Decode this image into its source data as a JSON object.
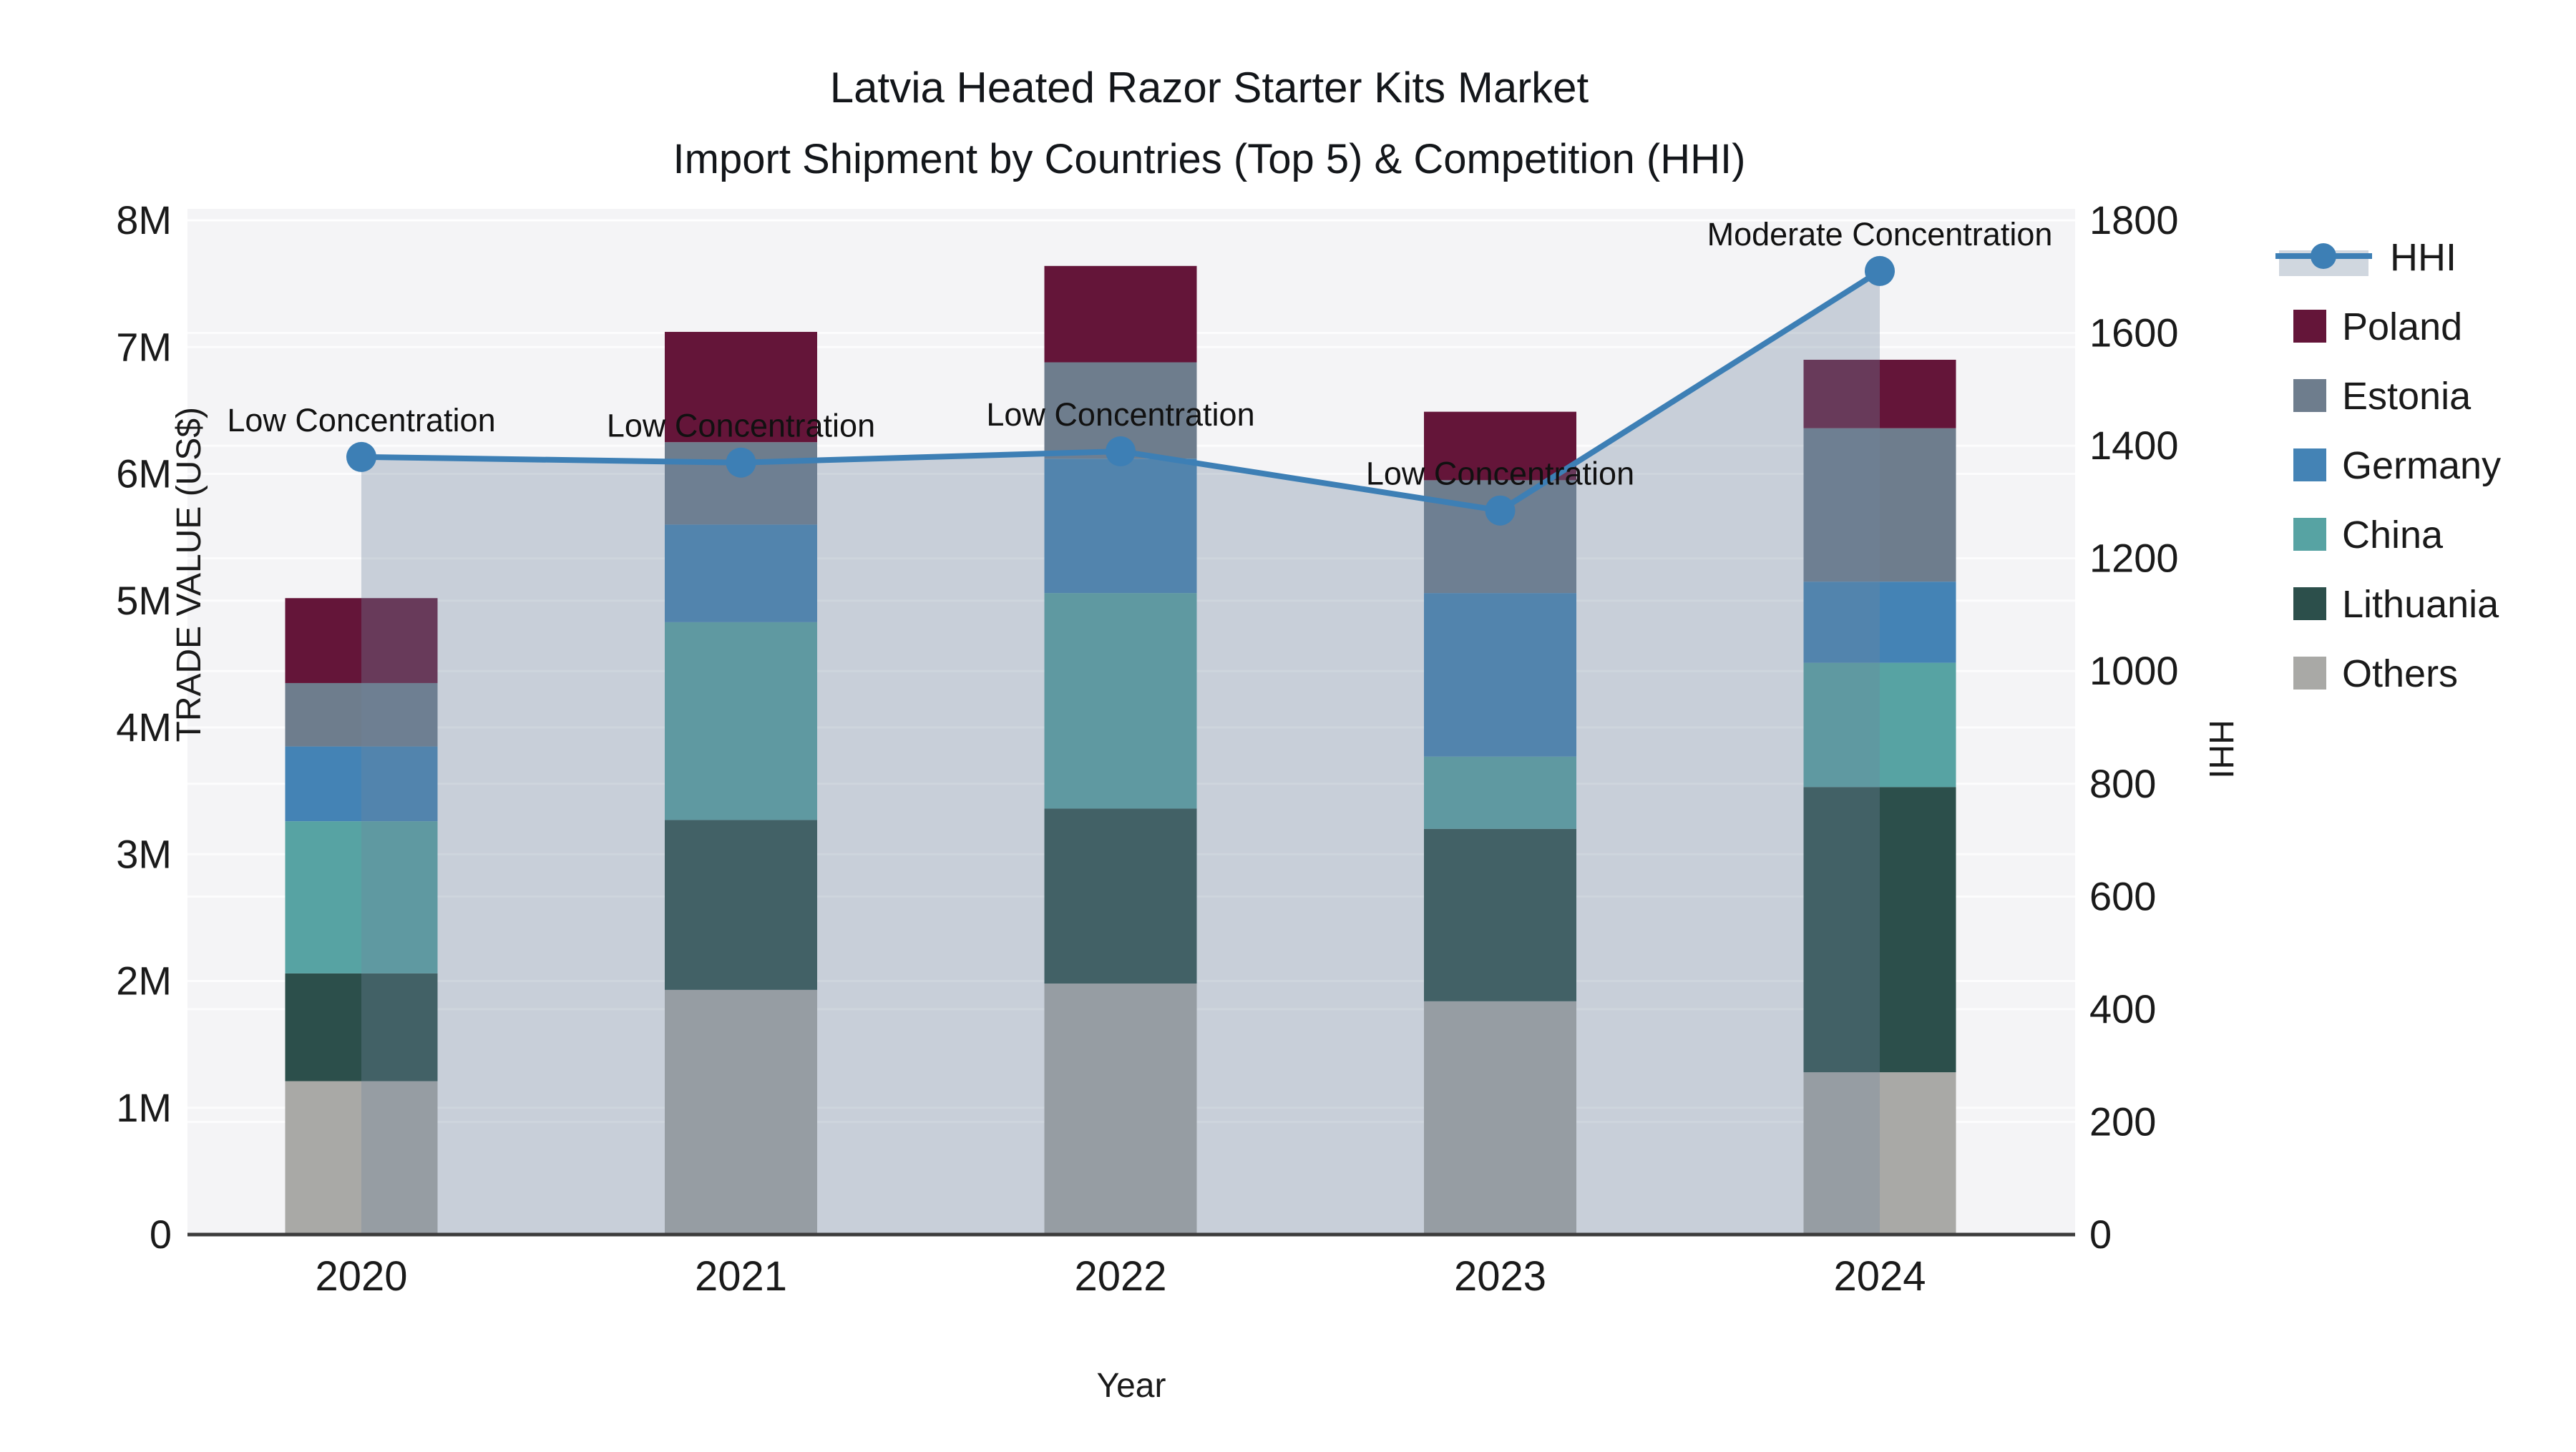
{
  "title": {
    "line1": "Latvia Heated Razor Starter Kits Market",
    "line2": "Import Shipment by Countries (Top 5) & Competition (HHI)"
  },
  "axes": {
    "left": {
      "title": "TRADE VALUE (US$)",
      "tick_labels": [
        "0",
        "1M",
        "2M",
        "3M",
        "4M",
        "5M",
        "6M",
        "7M",
        "8M"
      ],
      "max_musd": 8
    },
    "right": {
      "title": "HHI",
      "tick_labels": [
        "0",
        "200",
        "400",
        "600",
        "800",
        "1000",
        "1200",
        "1400",
        "1600",
        "1800"
      ],
      "max": 1800
    },
    "x": {
      "title": "Year",
      "tick_labels": [
        "2020",
        "2021",
        "2022",
        "2023",
        "2024"
      ]
    }
  },
  "legend": {
    "items": [
      {
        "label": "HHI",
        "swatch": "line-marker-area"
      },
      {
        "label": "Poland",
        "swatch": "square"
      },
      {
        "label": "Estonia",
        "swatch": "square"
      },
      {
        "label": "Germany",
        "swatch": "square"
      },
      {
        "label": "China",
        "swatch": "square"
      },
      {
        "label": "Lithuania",
        "swatch": "square"
      },
      {
        "label": "Others",
        "swatch": "square"
      }
    ]
  },
  "annotations": [
    {
      "year": "2020",
      "text": "Low Concentration"
    },
    {
      "year": "2021",
      "text": "Low Concentration"
    },
    {
      "year": "2022",
      "text": "Low Concentration"
    },
    {
      "year": "2023",
      "text": "Low Concentration"
    },
    {
      "year": "2024",
      "text": "Moderate Concentration"
    }
  ],
  "colors": {
    "plot_bg": "#f4f4f6",
    "gridline": "rgba(255,255,255,0.75)",
    "axis_line": "#3c3c3c",
    "hhi_line": "#3d7fb5",
    "hhi_area_fill": "rgba(113,133,158,0.33)",
    "poland": "#641539",
    "estonia": "#6e7d8d",
    "germany": "#4483b5",
    "china": "#57a3a3",
    "lithuania": "#2c4f4b",
    "others": "#a9a9a6",
    "text": "#1a1a1a"
  },
  "chart_data": {
    "type": "bar+line",
    "title": "Latvia Heated Razor Starter Kits Market — Import Shipment by Countries (Top 5) & Competition (HHI)",
    "categories": [
      "2020",
      "2021",
      "2022",
      "2023",
      "2024"
    ],
    "bar_unit": "million US$",
    "stack_order_bottom_to_top": [
      "Others",
      "Lithuania",
      "China",
      "Germany",
      "Estonia",
      "Poland"
    ],
    "series": [
      {
        "name": "Others",
        "color": "#a9a9a6",
        "values": [
          1.21,
          1.93,
          1.98,
          1.84,
          1.28
        ]
      },
      {
        "name": "Lithuania",
        "color": "#2c4f4b",
        "values": [
          0.85,
          1.34,
          1.38,
          1.36,
          2.25
        ]
      },
      {
        "name": "China",
        "color": "#57a3a3",
        "values": [
          1.2,
          1.56,
          1.7,
          0.57,
          0.98
        ]
      },
      {
        "name": "Germany",
        "color": "#4483b5",
        "values": [
          0.59,
          0.77,
          1.06,
          1.29,
          0.64
        ]
      },
      {
        "name": "Estonia",
        "color": "#6e7d8d",
        "values": [
          0.5,
          0.65,
          0.76,
          0.89,
          1.21
        ]
      },
      {
        "name": "Poland",
        "color": "#641539",
        "values": [
          0.67,
          0.87,
          0.76,
          0.54,
          0.54
        ]
      }
    ],
    "bar_totals_musd": [
      5.02,
      7.12,
      7.64,
      6.49,
      6.9
    ],
    "line": {
      "name": "HHI",
      "color": "#3d7fb5",
      "values": [
        1380,
        1370,
        1390,
        1285,
        1710
      ],
      "area_fill": "rgba(113,133,158,0.33)"
    },
    "xlabel": "Year",
    "ylabel_left": "TRADE VALUE (US$)",
    "ylabel_right": "HHI",
    "ylim_left_musd": [
      0,
      8
    ],
    "ylim_right": [
      0,
      1800
    ],
    "grid": true,
    "legend_position": "right"
  }
}
